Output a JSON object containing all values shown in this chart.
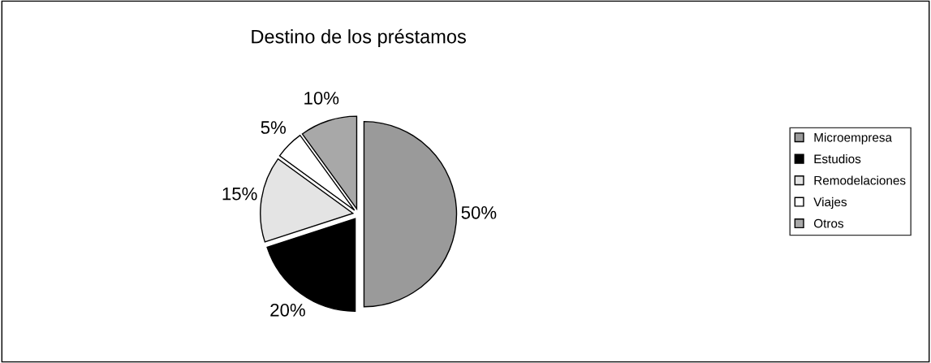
{
  "chart_data": {
    "type": "pie",
    "title": "Destino de los préstamos",
    "categories": [
      "Microempresa",
      "Estudios",
      "Remodelaciones",
      "Viajes",
      "Otros"
    ],
    "values": [
      50,
      20,
      15,
      5,
      10
    ],
    "value_labels": [
      "50%",
      "20%",
      "15%",
      "5%",
      "10%"
    ],
    "colors": [
      "#9a9a9a",
      "#000000",
      "#e4e4e4",
      "#ffffff",
      "#a8a8a8"
    ],
    "legend": "right"
  }
}
